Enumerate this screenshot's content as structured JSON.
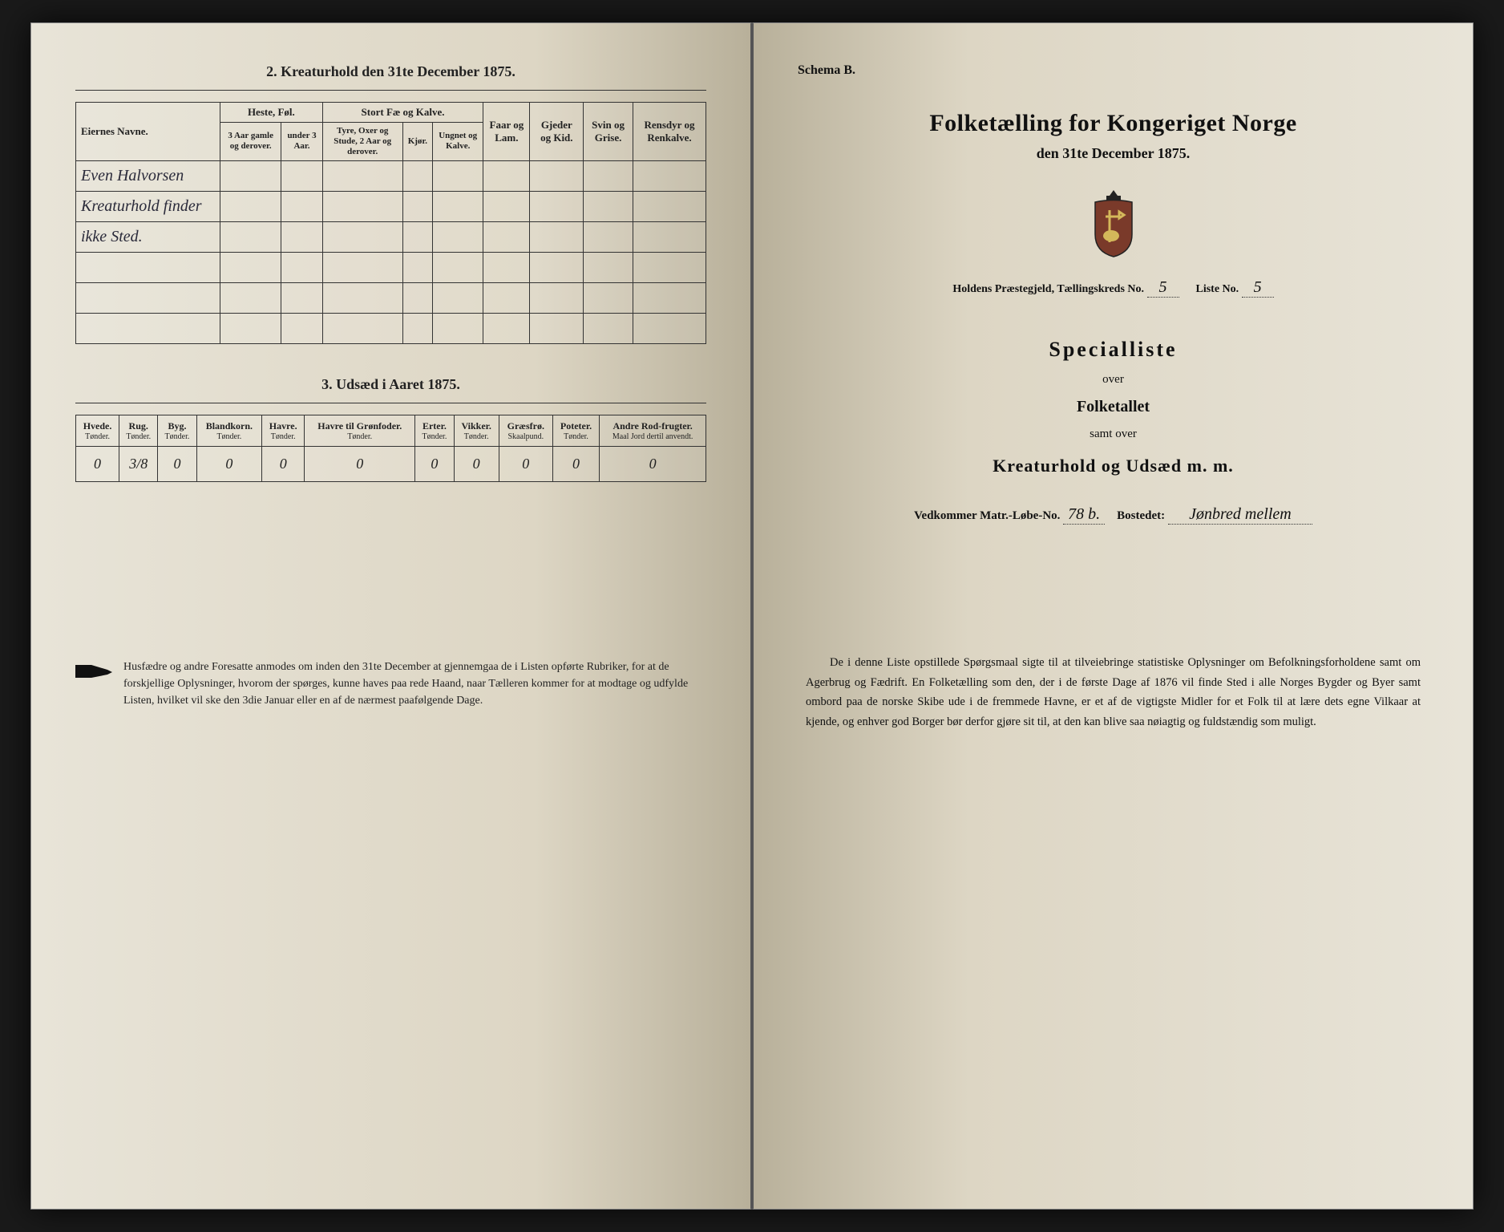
{
  "left": {
    "section2_title": "2. Kreaturhold den 31te December 1875.",
    "table1": {
      "col_eier": "Eiernes Navne.",
      "group_heste": "Heste, Føl.",
      "group_stort": "Stort Fæ og Kalve.",
      "col_faar": "Faar og Lam.",
      "col_gjeder": "Gjeder og Kid.",
      "col_svin": "Svin og Grise.",
      "col_rensdyr": "Rensdyr og Renkalve.",
      "sub_h1": "3 Aar gamle og derover.",
      "sub_h2": "under 3 Aar.",
      "sub_s1": "Tyre, Oxer og Stude, 2 Aar og derover.",
      "sub_s2": "Kjør.",
      "sub_s3": "Ungnet og Kalve.",
      "row1": "Even Halvorsen",
      "row2": "Kreaturhold finder",
      "row3": "ikke Sted."
    },
    "section3_title": "3. Udsæd i Aaret 1875.",
    "table3": {
      "headers": [
        {
          "h": "Hvede.",
          "s": "Tønder."
        },
        {
          "h": "Rug.",
          "s": "Tønder."
        },
        {
          "h": "Byg.",
          "s": "Tønder."
        },
        {
          "h": "Blandkorn.",
          "s": "Tønder."
        },
        {
          "h": "Havre.",
          "s": "Tønder."
        },
        {
          "h": "Havre til Grønfoder.",
          "s": "Tønder."
        },
        {
          "h": "Erter.",
          "s": "Tønder."
        },
        {
          "h": "Vikker.",
          "s": "Tønder."
        },
        {
          "h": "Græsfrø.",
          "s": "Skaalpund."
        },
        {
          "h": "Poteter.",
          "s": "Tønder."
        },
        {
          "h": "Andre Rod-frugter.",
          "s": "Maal Jord dertil anvendt."
        }
      ],
      "values": [
        "0",
        "3/8",
        "0",
        "0",
        "0",
        "0",
        "0",
        "0",
        "0",
        "0",
        "0"
      ]
    },
    "footer": "Husfædre og andre Foresatte anmodes om inden den 31te December at gjennemgaa de i Listen opførte Rubriker, for at de forskjellige Oplysninger, hvorom der spørges, kunne haves paa rede Haand, naar Tælleren kommer for at modtage og udfylde Listen, hvilket vil ske den 3die Januar eller en af de nærmest paafølgende Dage."
  },
  "right": {
    "schema": "Schema B.",
    "title": "Folketælling for Kongeriget Norge",
    "subtitle": "den 31te December 1875.",
    "fill_prefix": "Holdens Præstegjeld, Tællingskreds No.",
    "fill_kreds": "5",
    "fill_liste_label": "Liste No.",
    "fill_liste": "5",
    "spec_title": "Specialliste",
    "over": "over",
    "folketallet": "Folketallet",
    "samt": "samt over",
    "kreatur": "Kreaturhold og Udsæd m. m.",
    "vedk_label1": "Vedkommer Matr.-Løbe-No.",
    "vedk_val1": "78 b.",
    "vedk_label2": "Bostedet:",
    "vedk_val2": "Jønbred mellem",
    "bottom": "De i denne Liste opstillede Spørgsmaal sigte til at tilveiebringe statistiske Oplysninger om Befolkningsforholdene samt om Agerbrug og Fædrift. En Folketælling som den, der i de første Dage af 1876 vil finde Sted i alle Norges Bygder og Byer samt ombord paa de norske Skibe ude i de fremmede Havne, er et af de vigtigste Midler for et Folk til at lære dets egne Vilkaar at kjende, og enhver god Borger bør derfor gjøre sit til, at den kan blive saa nøiagtig og fuldstændig som muligt."
  },
  "colors": {
    "ink": "#1a1a1a",
    "paper": "#ddd6c4",
    "border": "#333333"
  }
}
